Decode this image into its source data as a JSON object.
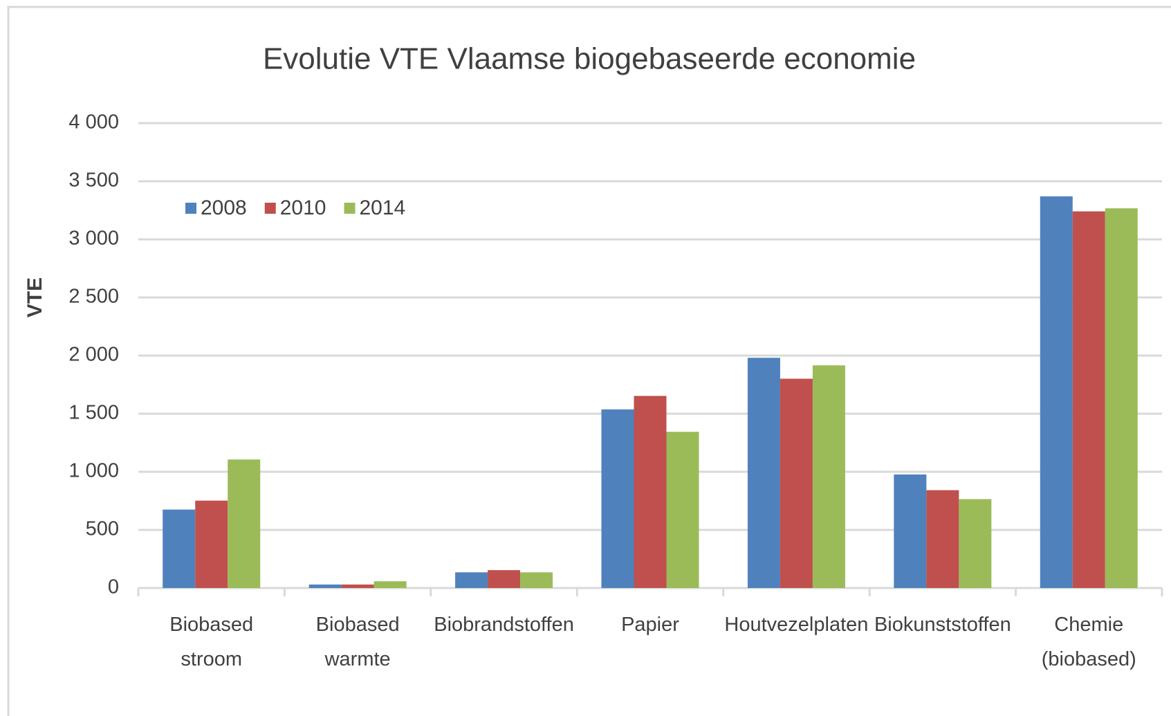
{
  "chart_data": {
    "type": "bar",
    "title": "Evolutie VTE Vlaamse biogebaseerde economie",
    "y_label": "VTE",
    "categories": [
      "Biobased stroom",
      "Biobased warmte",
      "Biobrandstoffen",
      "Papier",
      "Houtvezelplaten",
      "Biokunststoffen",
      "Chemie (biobased)"
    ],
    "series": [
      {
        "name": "2008",
        "color": "#4f81bd",
        "values": [
          675,
          30,
          135,
          1537,
          1981,
          977,
          3370
        ]
      },
      {
        "name": "2010",
        "color": "#c0504d",
        "values": [
          752,
          30,
          154,
          1653,
          1801,
          842,
          3241
        ]
      },
      {
        "name": "2014",
        "color": "#9bbb59",
        "values": [
          1106,
          58,
          135,
          1344,
          1916,
          765,
          3267
        ]
      }
    ],
    "ylim": [
      0,
      4000
    ],
    "yticks": [
      0,
      500,
      {
        "value": 1000,
        "label": "1 000"
      },
      {
        "value": 1500,
        "label": "1 500"
      },
      {
        "value": 2000,
        "label": "2 000"
      },
      {
        "value": 2500,
        "label": "2 500"
      },
      {
        "value": 3000,
        "label": "3 000"
      },
      {
        "value": 3500,
        "label": "3 500"
      },
      {
        "value": 4000,
        "label": "4 000"
      }
    ],
    "grid": true,
    "legend": "top-left"
  }
}
